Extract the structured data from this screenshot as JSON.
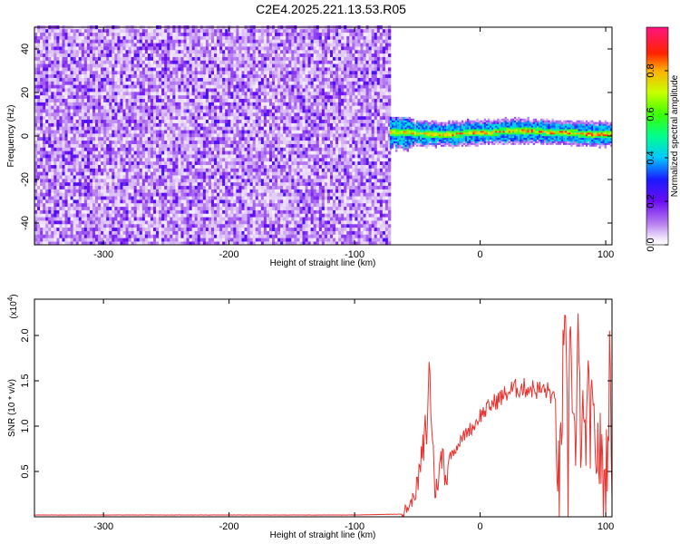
{
  "title": "C2E4.2025.221.13.53.R05",
  "chart_data": [
    {
      "type": "heatmap",
      "panel": "spectrogram",
      "xlabel": "Height of straight line (km)",
      "ylabel": "Frequency (Hz)",
      "xlim": [
        -355,
        105
      ],
      "ylim": [
        -50,
        50
      ],
      "xticks": [
        -300,
        -200,
        -100,
        0,
        100
      ],
      "yticks": [
        -40,
        -20,
        0,
        20,
        40
      ],
      "colorbar": {
        "label": "Normalized spectral amplitude",
        "range": [
          0,
          1
        ],
        "ticks": [
          0.0,
          0.2,
          0.4,
          0.6,
          0.8
        ],
        "tick_labels": [
          "0.0",
          "0.2",
          "0.4",
          "0.6",
          "0.8"
        ],
        "colormap": "rainbow (white-purple-blue-cyan-green-yellow-red-magenta)"
      },
      "regions": [
        {
          "x_range": [
            -355,
            -72
          ],
          "freq_range": [
            -50,
            50
          ],
          "description": "broadband noise",
          "amplitude": [
            0.0,
            0.25
          ]
        },
        {
          "x_range": [
            -72,
            105
          ],
          "freq_range": [
            -5,
            5
          ],
          "description": "narrowband signal centered near 0-2 Hz",
          "amplitude": [
            0.2,
            0.95
          ]
        }
      ]
    },
    {
      "type": "line",
      "panel": "snr",
      "xlabel": "Height of straight line (km)",
      "ylabel": "SNR (10 * v/v)",
      "y_multiplier": "(x10^4)",
      "xlim": [
        -355,
        105
      ],
      "ylim": [
        0,
        2.4
      ],
      "xticks": [
        -300,
        -200,
        -100,
        0,
        100
      ],
      "yticks": [
        0.5,
        1.0,
        1.5,
        2.0
      ],
      "ytick_labels": [
        "0.5",
        "1.0",
        "1.5",
        "2.0"
      ],
      "series": [
        {
          "color": "#e8322e",
          "x": [
            -355,
            -300,
            -200,
            -100,
            -62,
            -55,
            -50,
            -45,
            -42,
            -40,
            -38,
            -36,
            -33,
            -30,
            -27,
            -25,
            -20,
            -15,
            -10,
            -5,
            0,
            5,
            10,
            15,
            20,
            25,
            30,
            35,
            40,
            45,
            50,
            55,
            60,
            63,
            66,
            68,
            70,
            72,
            74,
            76,
            78,
            80,
            83,
            86,
            90,
            95,
            100,
            103,
            105
          ],
          "y": [
            0.02,
            0.02,
            0.02,
            0.02,
            0.03,
            0.15,
            0.35,
            0.75,
            1.1,
            1.62,
            0.9,
            0.25,
            0.45,
            0.7,
            0.4,
            0.65,
            0.75,
            0.85,
            0.95,
            1.0,
            1.12,
            1.18,
            1.25,
            1.3,
            1.35,
            1.4,
            1.42,
            1.42,
            1.42,
            1.4,
            1.4,
            1.38,
            1.25,
            0.15,
            1.6,
            1.75,
            0.4,
            2.35,
            1.2,
            0.6,
            1.8,
            1.0,
            0.8,
            1.2,
            0.9,
            0.7,
            0.3,
            1.6,
            0.2
          ]
        }
      ]
    }
  ]
}
